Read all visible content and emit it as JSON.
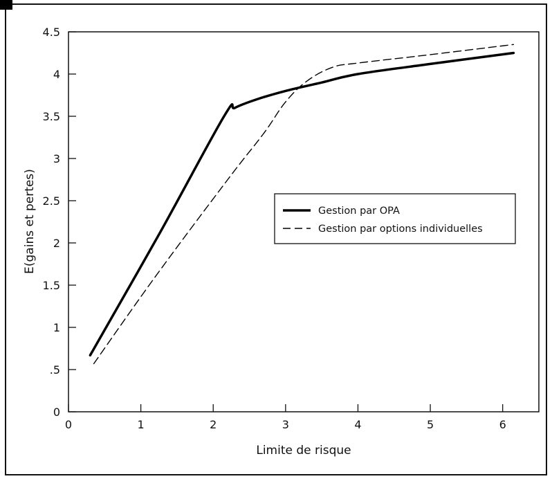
{
  "chart_data": {
    "type": "line",
    "title": "",
    "xlabel": "Limite de risque",
    "ylabel": "E(gains et pertes)",
    "xlim": [
      0,
      6.5
    ],
    "ylim": [
      0,
      4.5
    ],
    "x_ticks": [
      0,
      1,
      2,
      3,
      4,
      5,
      6
    ],
    "x_tick_labels": [
      "0",
      "1",
      "2",
      "3",
      "4",
      "5",
      "6"
    ],
    "y_ticks": [
      0,
      0.5,
      1,
      1.5,
      2,
      2.5,
      3,
      3.5,
      4,
      4.5
    ],
    "y_tick_labels": [
      "0",
      ".5",
      "1",
      "1.5",
      "2",
      "2.5",
      "3",
      "3.5",
      "4",
      "4.5"
    ],
    "grid": false,
    "legend_position": "center-right",
    "series": [
      {
        "name": "Gestion par OPA",
        "style": "solid",
        "color": "#000000",
        "x": [
          0.3,
          1.25,
          2.15,
          2.3,
          2.6,
          3.0,
          3.5,
          4.0,
          5.0,
          6.15
        ],
        "y": [
          0.67,
          2.1,
          3.5,
          3.6,
          3.7,
          3.8,
          3.9,
          4.0,
          4.12,
          4.25
        ]
      },
      {
        "name": "Gestion par options individuelles",
        "style": "dashed",
        "color": "#000000",
        "x": [
          0.35,
          1.2,
          2.2,
          2.7,
          3.0,
          3.3,
          3.65,
          4.0,
          5.0,
          6.15
        ],
        "y": [
          0.57,
          1.6,
          2.75,
          3.3,
          3.67,
          3.92,
          4.08,
          4.13,
          4.23,
          4.35
        ]
      }
    ]
  }
}
